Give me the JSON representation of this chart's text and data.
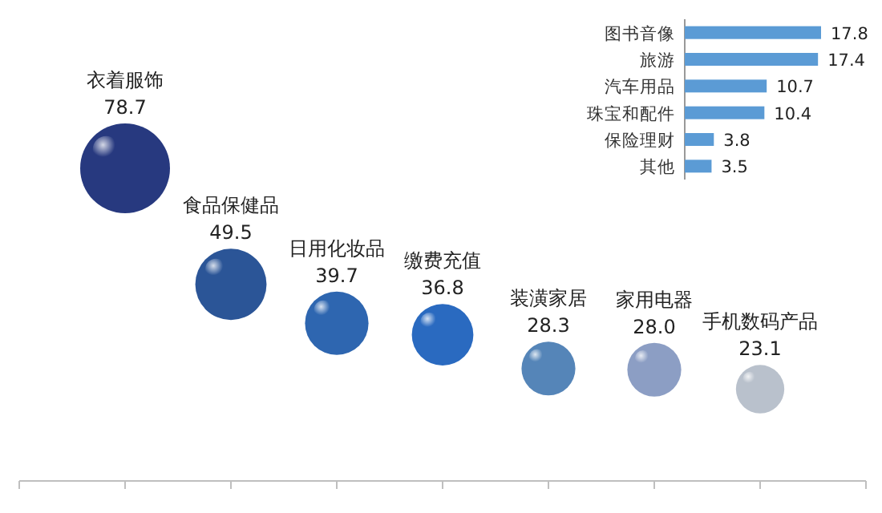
{
  "chart_data": [
    {
      "type": "bubble",
      "categories": [
        "衣着服饰",
        "食品保健品",
        "日用化妆品",
        "缴费充值",
        "装潢家居",
        "家用电器",
        "手机数码产品"
      ],
      "values": [
        78.7,
        49.5,
        39.7,
        36.8,
        28.3,
        28.0,
        23.1
      ],
      "colors": [
        "#27397f",
        "#2b5597",
        "#2e66b0",
        "#2a6ac0",
        "#5585b8",
        "#8c9ec4",
        "#b9c1cc"
      ],
      "sizes": [
        1,
        0.63,
        0.5,
        0.47,
        0.36,
        0.36,
        0.29
      ],
      "marker": "circle",
      "value_labels": [
        "78.7",
        "49.5",
        "39.7",
        "36.8",
        "28.3",
        "28.0",
        "23.1"
      ],
      "tick_labels": false
    },
    {
      "type": "bar",
      "orientation": "horizontal",
      "categories": [
        "图书音像",
        "旅游",
        "汽车用品",
        "珠宝和配件",
        "保险理财",
        "其他"
      ],
      "values": [
        17.8,
        17.4,
        10.7,
        10.4,
        3.8,
        3.5
      ],
      "color": "#5b9bd5",
      "data_labels": true,
      "tick_labels": "y"
    }
  ]
}
